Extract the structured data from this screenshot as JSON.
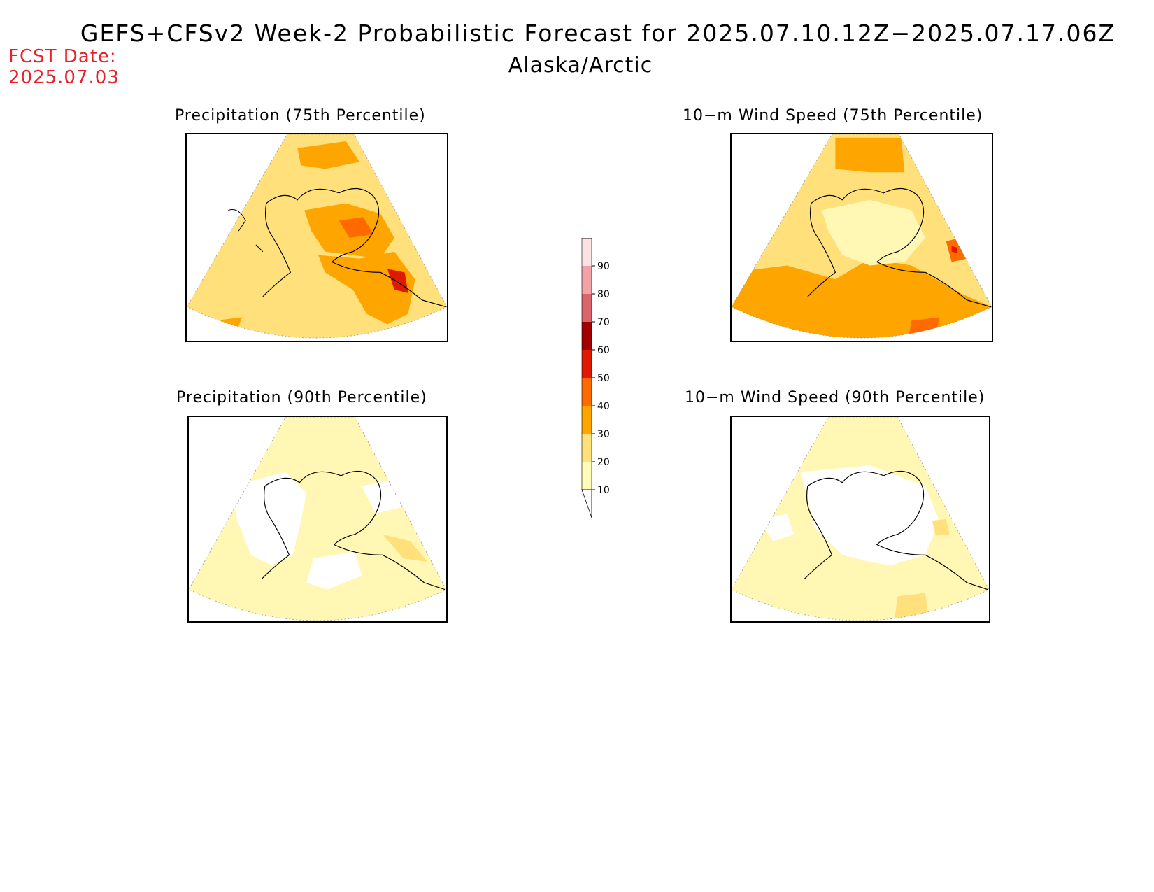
{
  "title": "GEFS+CFSv2 Week-2 Probabilistic Forecast for 2025.07.10.12Z−2025.07.17.06Z",
  "region": "Alaska/Arctic",
  "forecast_date": {
    "label": "FCST Date:",
    "value": "2025.07.03"
  },
  "panels": [
    {
      "id": "precip-75",
      "title": "Precipitation (75th Percentile)",
      "base_prob": 20,
      "highlights": [
        {
          "prob": 30,
          "area": "north"
        },
        {
          "prob": 40,
          "area": "interior"
        },
        {
          "prob": 40,
          "area": "southeast"
        },
        {
          "prob": 50,
          "area": "panhandle"
        }
      ]
    },
    {
      "id": "wind-75",
      "title": "10−m Wind Speed (75th Percentile)",
      "base_prob": 20,
      "highlights": [
        {
          "prob": 30,
          "area": "north"
        },
        {
          "prob": 30,
          "area": "gulf"
        },
        {
          "prob": 10,
          "area": "interior"
        },
        {
          "prob": 50,
          "area": "southeast-spot"
        }
      ]
    },
    {
      "id": "precip-90",
      "title": "Precipitation (90th Percentile)",
      "base_prob": 10,
      "highlights": [
        {
          "prob": 0,
          "area": "interior-west"
        },
        {
          "prob": 20,
          "area": "coast"
        }
      ]
    },
    {
      "id": "wind-90",
      "title": "10−m Wind Speed (90th Percentile)",
      "base_prob": 10,
      "highlights": [
        {
          "prob": 0,
          "area": "interior"
        },
        {
          "prob": 20,
          "area": "gulf-east"
        }
      ]
    }
  ],
  "colorbar": {
    "levels": [
      {
        "label": "10",
        "color": "#fffbb9"
      },
      {
        "label": "20",
        "color": "#ffe07a"
      },
      {
        "label": "30",
        "color": "#ffa500"
      },
      {
        "label": "40",
        "color": "#ff6a00"
      },
      {
        "label": "50",
        "color": "#e01a00"
      },
      {
        "label": "60",
        "color": "#a30000"
      },
      {
        "label": "70",
        "color": "#d9646a"
      },
      {
        "label": "80",
        "color": "#f2a3a6"
      },
      {
        "label": "90",
        "color": "#fbe3e4"
      }
    ]
  },
  "colors": {
    "p10": "#fff7b3",
    "p20": "#ffe07a",
    "p30": "#ffa500",
    "p40": "#ff6a00",
    "p50": "#e01a00",
    "none": "#ffffff",
    "fcst_text": "#e8202a"
  }
}
